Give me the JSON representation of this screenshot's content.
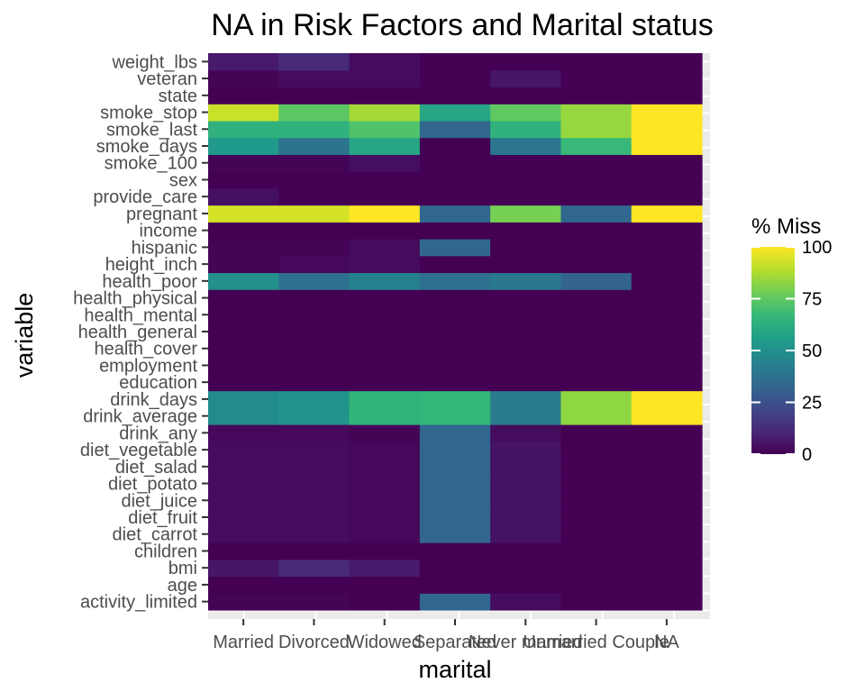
{
  "chart_data": {
    "type": "heatmap",
    "title": "NA in Risk Factors and Marital status",
    "xlabel": "marital",
    "ylabel": "variable",
    "x_categories": [
      "Married",
      "Divorced",
      "Widowed",
      "Separated",
      "Never married",
      "Unmarried Couple",
      "NA"
    ],
    "y_categories": [
      "activity_limited",
      "age",
      "bmi",
      "children",
      "diet_carrot",
      "diet_fruit",
      "diet_juice",
      "diet_potato",
      "diet_salad",
      "diet_vegetable",
      "drink_any",
      "drink_average",
      "drink_days",
      "education",
      "employment",
      "health_cover",
      "health_general",
      "health_mental",
      "health_physical",
      "health_poor",
      "height_inch",
      "hispanic",
      "income",
      "pregnant",
      "provide_care",
      "sex",
      "smoke_100",
      "smoke_days",
      "smoke_last",
      "smoke_stop",
      "state",
      "veteran",
      "weight_lbs"
    ],
    "values": [
      [
        1,
        1,
        0,
        33,
        3,
        0,
        0
      ],
      [
        0,
        0,
        0,
        0,
        0,
        0,
        0
      ],
      [
        6,
        12,
        7,
        0,
        0,
        0,
        0
      ],
      [
        0,
        0,
        0,
        0,
        0,
        0,
        0
      ],
      [
        3,
        3,
        2,
        33,
        5,
        0,
        0
      ],
      [
        3,
        3,
        2,
        33,
        5,
        0,
        0
      ],
      [
        3,
        3,
        2,
        33,
        5,
        0,
        0
      ],
      [
        3,
        3,
        2,
        33,
        5,
        0,
        0
      ],
      [
        3,
        3,
        2,
        33,
        5,
        0,
        0
      ],
      [
        3,
        3,
        2,
        33,
        5,
        0,
        0
      ],
      [
        2,
        2,
        1,
        33,
        3,
        0,
        0
      ],
      [
        48,
        52,
        65,
        66,
        42,
        83,
        100
      ],
      [
        48,
        52,
        65,
        66,
        42,
        83,
        100
      ],
      [
        0,
        0,
        0,
        0,
        0,
        0,
        0
      ],
      [
        0,
        0,
        0,
        0,
        0,
        0,
        0
      ],
      [
        0,
        0,
        0,
        0,
        0,
        0,
        0
      ],
      [
        0,
        0,
        0,
        0,
        0,
        0,
        0
      ],
      [
        0,
        0,
        0,
        0,
        0,
        0,
        0
      ],
      [
        0,
        0,
        0,
        0,
        0,
        0,
        0
      ],
      [
        50,
        37,
        44,
        37,
        40,
        32,
        0
      ],
      [
        1,
        2,
        3,
        0,
        0,
        0,
        0
      ],
      [
        1,
        1,
        3,
        33,
        0,
        0,
        0
      ],
      [
        0,
        0,
        0,
        0,
        0,
        0,
        0
      ],
      [
        94,
        94,
        100,
        33,
        79,
        33,
        100
      ],
      [
        4,
        0,
        0,
        0,
        0,
        0,
        0
      ],
      [
        0,
        0,
        0,
        0,
        0,
        0,
        0
      ],
      [
        1,
        1,
        4,
        0,
        0,
        0,
        0
      ],
      [
        54,
        38,
        59,
        0,
        39,
        67,
        100
      ],
      [
        64,
        64,
        72,
        33,
        64,
        84,
        100
      ],
      [
        92,
        74,
        86,
        59,
        75,
        84,
        100
      ],
      [
        0,
        0,
        0,
        0,
        0,
        0,
        0
      ],
      [
        1,
        3,
        3,
        0,
        6,
        0,
        0
      ],
      [
        7,
        12,
        3,
        0,
        0,
        0,
        0
      ]
    ],
    "legend": {
      "title": "% Miss",
      "ticks": [
        0,
        25,
        50,
        75,
        100
      ],
      "position": "right"
    },
    "color_scale": {
      "name": "viridis",
      "stops": [
        "#440154",
        "#482878",
        "#3e4a89",
        "#31688e",
        "#26828e",
        "#1f9e89",
        "#35b779",
        "#6ece58",
        "#b5de2b",
        "#fde725"
      ]
    },
    "grid": true,
    "panel_background": "#ebebeb"
  }
}
